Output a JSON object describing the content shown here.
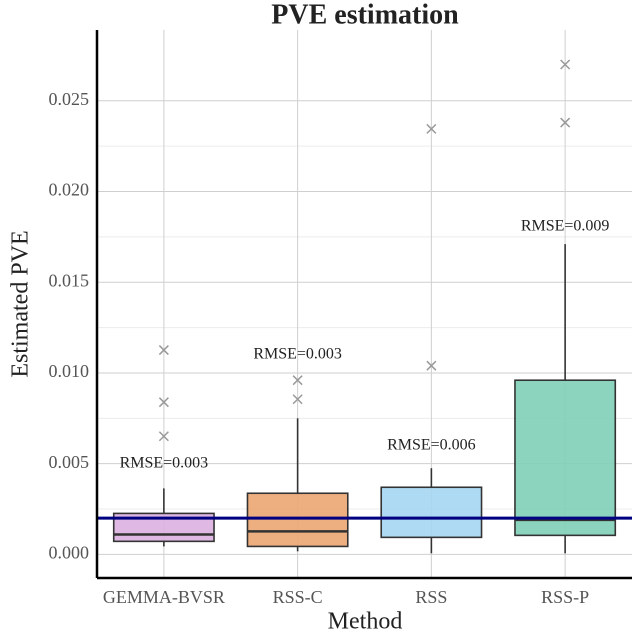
{
  "chart_data": {
    "type": "box",
    "title": "PVE estimation",
    "x_label": "Method",
    "y_label": "Estimated PVE",
    "categories": [
      "GEMMA-BVSR",
      "RSS-C",
      "RSS",
      "RSS-P"
    ],
    "boxes": [
      {
        "whisker_low": 0.00044,
        "q1": 0.00072,
        "median": 0.0011,
        "q3": 0.00226,
        "whisker_high": 0.00364,
        "outliers": [
          0.00651,
          0.00839,
          0.01126
        ],
        "color": "#dcb0e0"
      },
      {
        "whisker_low": 0.00017,
        "q1": 0.00044,
        "median": 0.00127,
        "q3": 0.00337,
        "whisker_high": 0.0075,
        "outliers": [
          0.00855,
          0.0096
        ],
        "color": "#eba672"
      },
      {
        "whisker_low": 6e-05,
        "q1": 0.00094,
        "median": 0.002,
        "q3": 0.0037,
        "whisker_high": 0.00475,
        "outliers": [
          0.0104,
          0.02345
        ],
        "color": "#a6d6f2"
      },
      {
        "whisker_low": 6e-05,
        "q1": 0.00105,
        "median": 0.0019,
        "q3": 0.0096,
        "whisker_high": 0.0171,
        "outliers": [
          0.0238,
          0.027
        ],
        "color": "#7fcfb6"
      }
    ],
    "annotations": [
      "RMSE=0.003",
      "RMSE=0.003",
      "RMSE=0.006",
      "RMSE=0.009"
    ],
    "reference_line": {
      "value": 0.002,
      "color": "#000080"
    },
    "ylim": [
      -0.0013,
      0.0289
    ],
    "yticks": [
      {
        "value": 0,
        "label": "0.000"
      },
      {
        "value": 0.005,
        "label": "0.005"
      },
      {
        "value": 0.01,
        "label": "0.010"
      },
      {
        "value": 0.015,
        "label": "0.015"
      },
      {
        "value": 0.02,
        "label": "0.020"
      },
      {
        "value": 0.025,
        "label": "0.025"
      }
    ],
    "grid": true
  }
}
